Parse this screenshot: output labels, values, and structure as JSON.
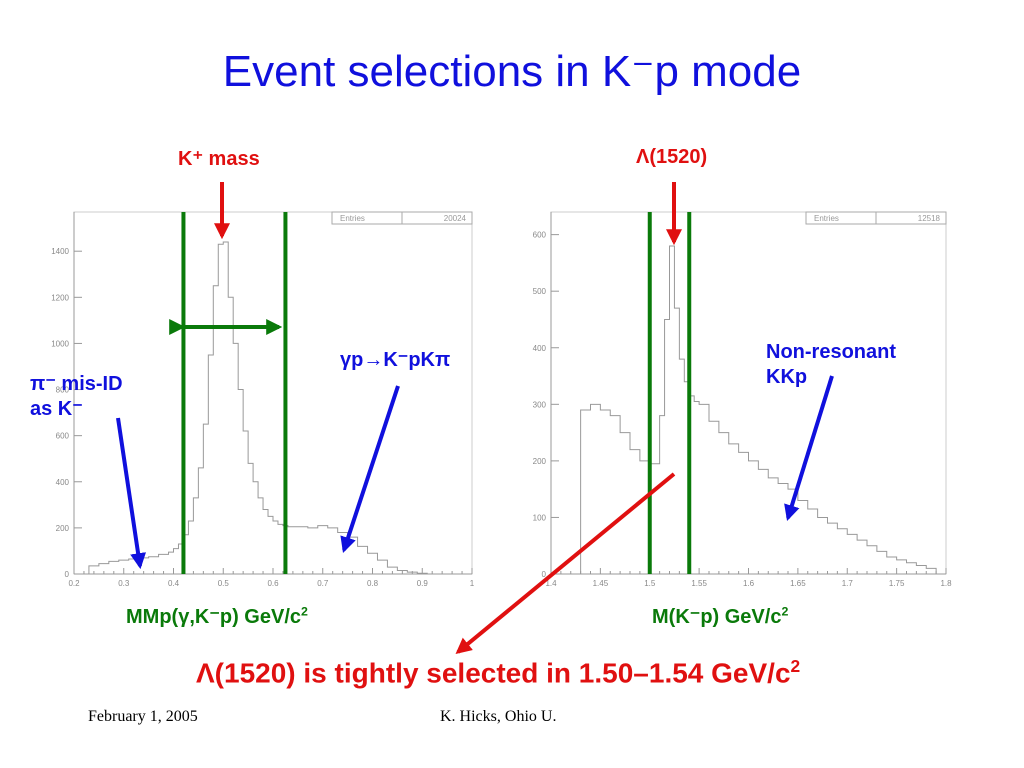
{
  "title": "Event selections in K⁻p mode",
  "labels": {
    "kplus_mass": "K⁺ mass",
    "lambda1520": "Λ(1520)",
    "pi_misid": "π⁻ mis-ID",
    "as_k": "as K⁻",
    "gamma_p": "γp→K⁻pKπ",
    "nonres_1": "Non-resonant",
    "nonres_2": "KKp",
    "conclusion_main": "Λ(1520) is tightly selected in 1.50–1.54 GeV/c",
    "conclusion_sup": "2"
  },
  "footer": {
    "date": "February 1, 2005",
    "author": "K. Hicks, Ohio U."
  },
  "colors": {
    "title": "#1010dd",
    "annotation_red": "#e01010",
    "annotation_blue": "#1010dd",
    "cut_lines": "#0a7a0a",
    "histogram": "#999999"
  },
  "chart_data": [
    {
      "type": "histogram",
      "stats_label": "Entries",
      "stats_value": "20024",
      "xlabel": "MMp(γ,K⁻p)  GeV/c",
      "xlabel_sup": "2",
      "xlim": [
        0.2,
        1.0
      ],
      "ylim": [
        0,
        1570
      ],
      "xticks": [
        0.2,
        0.3,
        0.4,
        0.5,
        0.6,
        0.7,
        0.8,
        0.9,
        1.0
      ],
      "xtick_labels": [
        "0.2",
        "0.3",
        "0.4",
        "0.5",
        "0.6",
        "0.7",
        "0.8",
        "0.9",
        "1"
      ],
      "yticks": [
        0,
        200,
        400,
        600,
        800,
        1000,
        1200,
        1400
      ],
      "ytick_labels": [
        "0",
        "200",
        "400",
        "600",
        "800",
        "1000",
        "1200",
        "1400"
      ],
      "cuts": [
        0.42,
        0.625
      ],
      "bin_edges": [
        0.23,
        0.25,
        0.27,
        0.29,
        0.31,
        0.33,
        0.35,
        0.37,
        0.39,
        0.4,
        0.41,
        0.42,
        0.43,
        0.44,
        0.45,
        0.46,
        0.47,
        0.48,
        0.49,
        0.5,
        0.51,
        0.52,
        0.53,
        0.54,
        0.55,
        0.56,
        0.57,
        0.58,
        0.59,
        0.6,
        0.61,
        0.62,
        0.63,
        0.65,
        0.67,
        0.69,
        0.71,
        0.73,
        0.75,
        0.77,
        0.79,
        0.81,
        0.83,
        0.85,
        0.87,
        0.89,
        0.91
      ],
      "counts": [
        35,
        45,
        55,
        60,
        65,
        70,
        75,
        85,
        95,
        110,
        130,
        170,
        230,
        330,
        460,
        650,
        950,
        1250,
        1430,
        1440,
        1200,
        1000,
        800,
        620,
        480,
        400,
        330,
        280,
        250,
        230,
        215,
        210,
        205,
        205,
        200,
        210,
        200,
        180,
        160,
        120,
        90,
        60,
        30,
        15,
        8,
        3
      ]
    },
    {
      "type": "histogram",
      "stats_label": "Entries",
      "stats_value": "12518",
      "xlabel": "M(K⁻p) GeV/c",
      "xlabel_sup": "2",
      "xlim": [
        1.4,
        1.8
      ],
      "ylim": [
        0,
        640
      ],
      "xticks": [
        1.4,
        1.45,
        1.5,
        1.55,
        1.6,
        1.65,
        1.7,
        1.75,
        1.8
      ],
      "xtick_labels": [
        "1.4",
        "1.45",
        "1.5",
        "1.55",
        "1.6",
        "1.65",
        "1.7",
        "1.75",
        "1.8"
      ],
      "yticks": [
        0,
        100,
        200,
        300,
        400,
        500,
        600
      ],
      "ytick_labels": [
        "0",
        "100",
        "200",
        "300",
        "400",
        "500",
        "600"
      ],
      "cuts": [
        1.5,
        1.54
      ],
      "bin_edges": [
        1.43,
        1.44,
        1.45,
        1.46,
        1.47,
        1.48,
        1.49,
        1.5,
        1.51,
        1.515,
        1.52,
        1.525,
        1.53,
        1.535,
        1.54,
        1.545,
        1.55,
        1.56,
        1.57,
        1.58,
        1.59,
        1.6,
        1.61,
        1.62,
        1.63,
        1.64,
        1.65,
        1.66,
        1.67,
        1.68,
        1.69,
        1.7,
        1.71,
        1.72,
        1.73,
        1.74,
        1.75,
        1.76,
        1.77,
        1.78,
        1.79
      ],
      "counts": [
        290,
        300,
        290,
        280,
        250,
        220,
        200,
        195,
        280,
        450,
        580,
        470,
        380,
        340,
        315,
        305,
        300,
        270,
        250,
        230,
        215,
        200,
        185,
        170,
        160,
        150,
        130,
        115,
        100,
        90,
        80,
        70,
        60,
        50,
        40,
        30,
        25,
        20,
        15,
        10
      ]
    }
  ]
}
